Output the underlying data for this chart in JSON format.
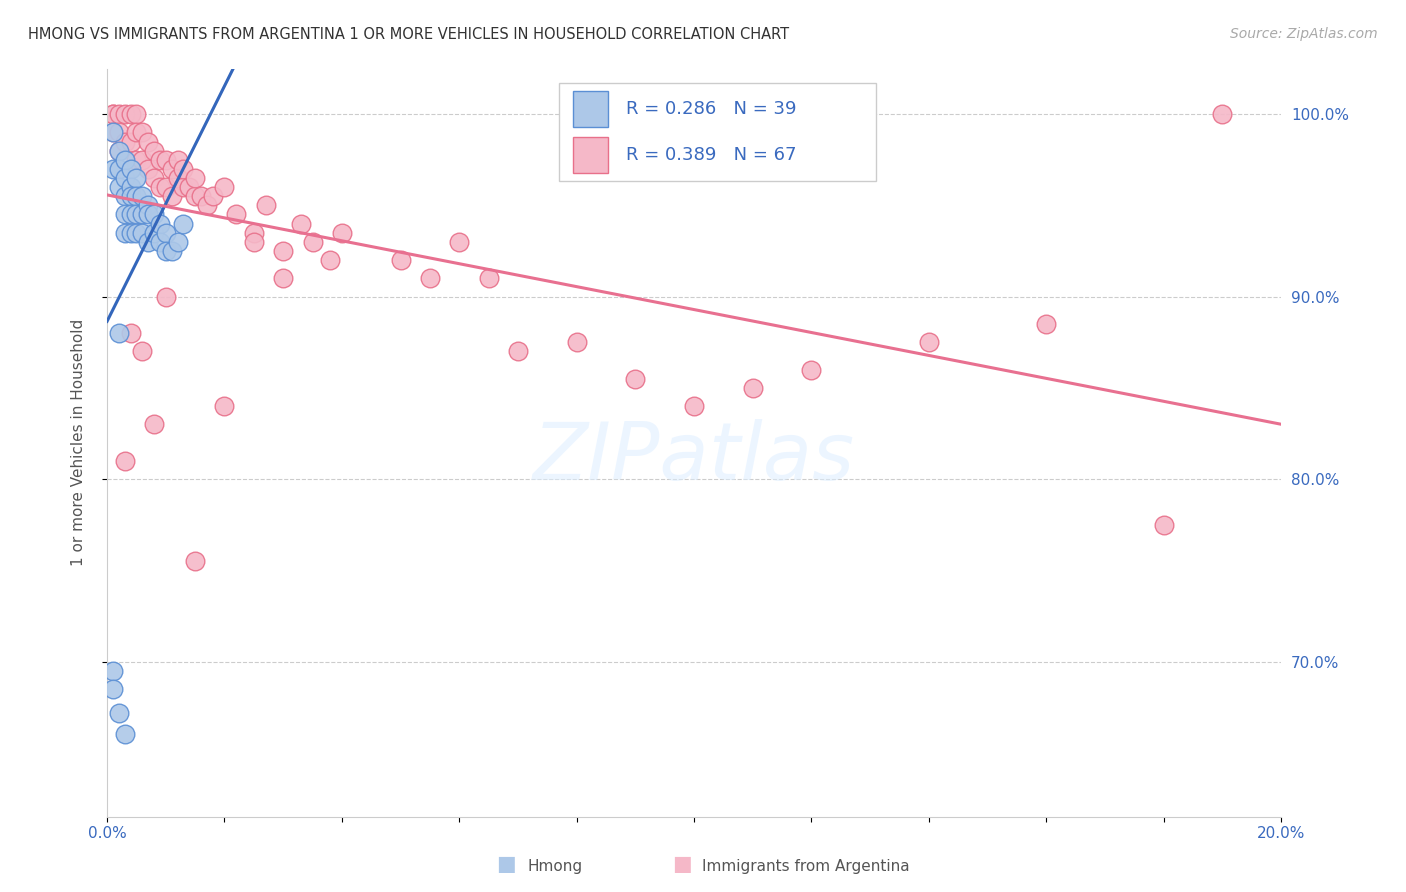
{
  "title": "HMONG VS IMMIGRANTS FROM ARGENTINA 1 OR MORE VEHICLES IN HOUSEHOLD CORRELATION CHART",
  "source": "Source: ZipAtlas.com",
  "ylabel": "1 or more Vehicles in Household",
  "xlim": [
    0.0,
    0.2
  ],
  "ylim": [
    0.615,
    1.025
  ],
  "xticks": [
    0.0,
    0.02,
    0.04,
    0.06,
    0.08,
    0.1,
    0.12,
    0.14,
    0.16,
    0.18,
    0.2
  ],
  "xticklabels": [
    "0.0%",
    "",
    "",
    "",
    "",
    "",
    "",
    "",
    "",
    "",
    "20.0%"
  ],
  "yticks": [
    0.7,
    0.8,
    0.9,
    1.0
  ],
  "yticklabels": [
    "70.0%",
    "80.0%",
    "90.0%",
    "100.0%"
  ],
  "hmong_color": "#adc8e8",
  "hmong_edge_color": "#5b8fd4",
  "argentina_color": "#f5b8c8",
  "argentina_edge_color": "#e8708a",
  "trend_hmong_color": "#3366bb",
  "trend_argentina_color": "#e87090",
  "legend_R_hmong": "R = 0.286",
  "legend_N_hmong": "N = 39",
  "legend_R_argentina": "R = 0.389",
  "legend_N_argentina": "N = 67",
  "text_blue": "#3a6abf",
  "hmong_x": [
    0.001,
    0.001,
    0.002,
    0.002,
    0.002,
    0.003,
    0.003,
    0.003,
    0.003,
    0.003,
    0.004,
    0.004,
    0.004,
    0.004,
    0.004,
    0.005,
    0.005,
    0.005,
    0.005,
    0.006,
    0.006,
    0.006,
    0.007,
    0.007,
    0.007,
    0.008,
    0.008,
    0.009,
    0.009,
    0.01,
    0.01,
    0.011,
    0.012,
    0.013,
    0.001,
    0.001,
    0.002,
    0.003,
    0.002
  ],
  "hmong_y": [
    0.99,
    0.97,
    0.98,
    0.97,
    0.96,
    0.975,
    0.965,
    0.955,
    0.945,
    0.935,
    0.97,
    0.96,
    0.955,
    0.945,
    0.935,
    0.965,
    0.955,
    0.945,
    0.935,
    0.955,
    0.945,
    0.935,
    0.95,
    0.945,
    0.93,
    0.945,
    0.935,
    0.94,
    0.93,
    0.935,
    0.925,
    0.925,
    0.93,
    0.94,
    0.695,
    0.685,
    0.672,
    0.66,
    0.88
  ],
  "argentina_x": [
    0.001,
    0.001,
    0.001,
    0.002,
    0.002,
    0.002,
    0.003,
    0.003,
    0.004,
    0.004,
    0.005,
    0.005,
    0.005,
    0.006,
    0.006,
    0.007,
    0.007,
    0.008,
    0.008,
    0.009,
    0.009,
    0.01,
    0.01,
    0.011,
    0.011,
    0.012,
    0.012,
    0.013,
    0.013,
    0.014,
    0.015,
    0.015,
    0.016,
    0.017,
    0.018,
    0.02,
    0.022,
    0.025,
    0.027,
    0.03,
    0.033,
    0.035,
    0.038,
    0.04,
    0.05,
    0.055,
    0.06,
    0.065,
    0.07,
    0.08,
    0.09,
    0.1,
    0.11,
    0.12,
    0.14,
    0.16,
    0.18,
    0.003,
    0.004,
    0.006,
    0.008,
    0.01,
    0.015,
    0.02,
    0.025,
    0.03,
    0.19
  ],
  "argentina_y": [
    1.0,
    1.0,
    0.99,
    1.0,
    0.99,
    0.98,
    1.0,
    0.985,
    1.0,
    0.985,
    1.0,
    0.99,
    0.975,
    0.99,
    0.975,
    0.985,
    0.97,
    0.98,
    0.965,
    0.975,
    0.96,
    0.975,
    0.96,
    0.97,
    0.955,
    0.965,
    0.975,
    0.96,
    0.97,
    0.96,
    0.955,
    0.965,
    0.955,
    0.95,
    0.955,
    0.96,
    0.945,
    0.935,
    0.95,
    0.925,
    0.94,
    0.93,
    0.92,
    0.935,
    0.92,
    0.91,
    0.93,
    0.91,
    0.87,
    0.875,
    0.855,
    0.84,
    0.85,
    0.86,
    0.875,
    0.885,
    0.775,
    0.81,
    0.88,
    0.87,
    0.83,
    0.9,
    0.755,
    0.84,
    0.93,
    0.91,
    1.0
  ]
}
